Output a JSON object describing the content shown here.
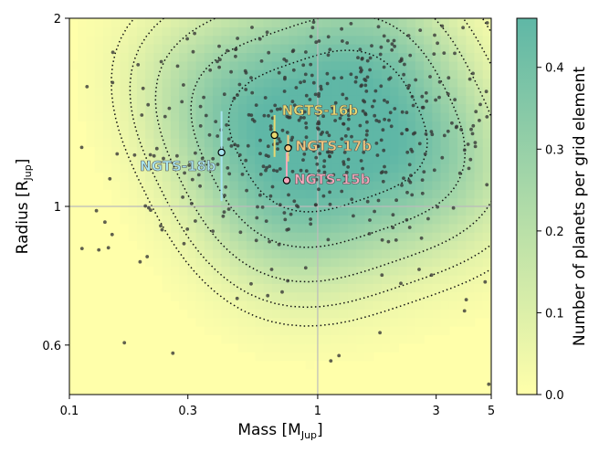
{
  "chart_data": {
    "type": "heatmap",
    "xlabel": {
      "main": "Mass [M",
      "sub": "Jup",
      "close": "]"
    },
    "ylabel": {
      "main": "Radius [R",
      "sub": "Jup",
      "close": "]"
    },
    "xscale": "log",
    "yscale": "log",
    "xlim": [
      0.1,
      5
    ],
    "ylim": [
      0.5,
      2
    ],
    "xticks": [
      {
        "value": 0.1,
        "label": "0.1"
      },
      {
        "value": 0.3,
        "label": "0.3"
      },
      {
        "value": 1,
        "label": "1"
      },
      {
        "value": 3,
        "label": "3"
      },
      {
        "value": 5,
        "label": "5"
      }
    ],
    "yticks": [
      {
        "value": 0.6,
        "label": "0.6"
      },
      {
        "value": 1,
        "label": "1"
      },
      {
        "value": 2,
        "label": "2"
      }
    ],
    "reference_lines": {
      "x": 1,
      "y": 1
    },
    "colorbar": {
      "label": "Number of planets per grid element",
      "min": 0.0,
      "max": 0.46,
      "ticks": [
        {
          "value": 0.0,
          "label": "0.0"
        },
        {
          "value": 0.1,
          "label": "0.1"
        },
        {
          "value": 0.2,
          "label": "0.2"
        },
        {
          "value": 0.3,
          "label": "0.3"
        },
        {
          "value": 0.4,
          "label": "0.4"
        }
      ],
      "colors": [
        "#ffffaa",
        "#5fb7a6"
      ]
    },
    "density_peak": {
      "mass": 1.1,
      "radius": 1.32
    },
    "planets": [
      {
        "name": "NGTS-15b",
        "mass": 0.75,
        "radius": 1.1,
        "radius_err": [
          0.12,
          0.0
        ],
        "color": "#f3a8bc"
      },
      {
        "name": "NGTS-16b",
        "mass": 0.67,
        "radius": 1.3,
        "radius_err": [
          0.1,
          0.1
        ],
        "color": "#e8d870"
      },
      {
        "name": "NGTS-17b",
        "mass": 0.76,
        "radius": 1.24,
        "radius_err": [
          0.06,
          0.06
        ],
        "color": "#f2c880"
      },
      {
        "name": "NGTS-18b",
        "mass": 0.41,
        "radius": 1.22,
        "radius_err": [
          0.2,
          0.2
        ],
        "color": "#a8e4ef"
      }
    ]
  }
}
